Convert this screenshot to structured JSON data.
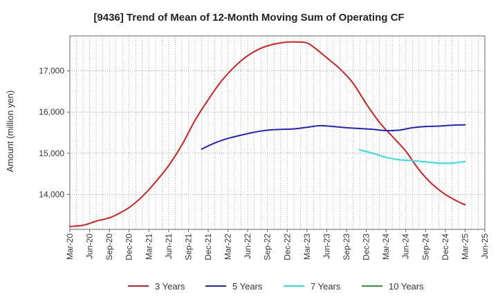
{
  "chart_data": {
    "type": "line",
    "title": "[9436]  Trend of Mean of 12-Month Moving Sum of Operating CF",
    "xlabel": "",
    "ylabel": "Amount (million yen)",
    "ylim": [
      13150,
      17850
    ],
    "y_ticks": [
      14000,
      15000,
      16000,
      17000
    ],
    "y_tick_labels": [
      "14,000",
      "15,000",
      "16,000",
      "17,000"
    ],
    "x_range_months": [
      "Mar-20",
      "Jun-25"
    ],
    "x_tick_labels": [
      "Mar-20",
      "Jun-20",
      "Sep-20",
      "Dec-20",
      "Mar-21",
      "Jun-21",
      "Sep-21",
      "Dec-21",
      "Mar-22",
      "Jun-22",
      "Sep-22",
      "Dec-22",
      "Mar-23",
      "Jun-23",
      "Sep-23",
      "Dec-23",
      "Mar-24",
      "Jun-24",
      "Sep-24",
      "Dec-24",
      "Mar-25",
      "Jun-25"
    ],
    "grid": true,
    "legend_position": "bottom",
    "series": [
      {
        "name": "3 Years",
        "color": "#e31a1c",
        "x": [
          "Mar-20",
          "May-20",
          "Jul-20",
          "Sep-20",
          "Oct-20",
          "Dec-20",
          "Feb-21",
          "Apr-21",
          "Jun-21",
          "Aug-21",
          "Oct-21",
          "Dec-21",
          "Feb-22",
          "Apr-22",
          "Jun-22",
          "Aug-22",
          "Oct-22",
          "Dec-22",
          "Feb-23",
          "Mar-23",
          "Apr-23",
          "Jun-23",
          "Aug-23",
          "Oct-23",
          "Dec-23",
          "Feb-24",
          "Apr-24",
          "Jun-24",
          "Aug-24",
          "Oct-24",
          "Dec-24",
          "Feb-25",
          "Mar-25"
        ],
        "values": [
          13220,
          13250,
          13350,
          13430,
          13500,
          13680,
          13950,
          14300,
          14700,
          15200,
          15800,
          16300,
          16750,
          17100,
          17370,
          17550,
          17650,
          17700,
          17700,
          17680,
          17580,
          17320,
          17050,
          16700,
          16200,
          15750,
          15400,
          15050,
          14600,
          14250,
          14000,
          13820,
          13750
        ]
      },
      {
        "name": "5 Years",
        "color": "#1f1fd6",
        "x": [
          "Nov-21",
          "Jan-22",
          "Mar-22",
          "May-22",
          "Jul-22",
          "Sep-22",
          "Nov-22",
          "Jan-23",
          "Mar-23",
          "May-23",
          "Jul-23",
          "Sep-23",
          "Nov-23",
          "Jan-24",
          "Mar-24",
          "May-24",
          "Jul-24",
          "Sep-24",
          "Nov-24",
          "Jan-25",
          "Mar-25"
        ],
        "values": [
          15100,
          15250,
          15360,
          15440,
          15510,
          15560,
          15580,
          15590,
          15630,
          15670,
          15650,
          15620,
          15600,
          15580,
          15550,
          15560,
          15620,
          15650,
          15660,
          15680,
          15690
        ]
      },
      {
        "name": "7 Years",
        "color": "#22e5f0",
        "x": [
          "Nov-23",
          "Jan-24",
          "Mar-24",
          "May-24",
          "Jul-24",
          "Sep-24",
          "Nov-24",
          "Jan-25",
          "Mar-25"
        ],
        "values": [
          15080,
          15000,
          14900,
          14840,
          14820,
          14790,
          14760,
          14760,
          14800
        ]
      },
      {
        "name": "10 Years",
        "color": "#2ca02c",
        "x": [],
        "values": []
      }
    ]
  }
}
